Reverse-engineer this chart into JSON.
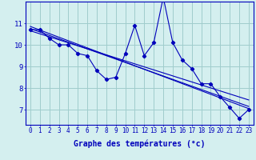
{
  "x": [
    0,
    1,
    2,
    3,
    4,
    5,
    6,
    7,
    8,
    9,
    10,
    11,
    12,
    13,
    14,
    15,
    16,
    17,
    18,
    19,
    20,
    21,
    22,
    23
  ],
  "y_data": [
    10.7,
    10.7,
    10.3,
    10.0,
    10.0,
    9.6,
    9.5,
    8.8,
    8.4,
    8.5,
    9.6,
    10.9,
    9.5,
    10.1,
    12.2,
    10.1,
    9.3,
    8.9,
    8.2,
    8.2,
    7.6,
    7.1,
    6.6,
    7.0
  ],
  "reg_lines": [
    {
      "x0": 0,
      "y0": 10.85,
      "x1": 23,
      "y1": 7.05
    },
    {
      "x0": 0,
      "y0": 10.75,
      "x1": 23,
      "y1": 7.15
    },
    {
      "x0": 0,
      "y0": 10.65,
      "x1": 23,
      "y1": 7.45
    }
  ],
  "bg_color": "#d4efef",
  "line_color": "#0000bb",
  "grid_color": "#a0cccc",
  "xlabel": "Graphe des températures (°c)",
  "xlabel_fontsize": 7,
  "ylabel_ticks": [
    7,
    8,
    9,
    10,
    11
  ],
  "xlim": [
    -0.5,
    23.5
  ],
  "ylim": [
    6.3,
    12.0
  ],
  "xtick_fontsize": 5.5,
  "ytick_fontsize": 6.5
}
